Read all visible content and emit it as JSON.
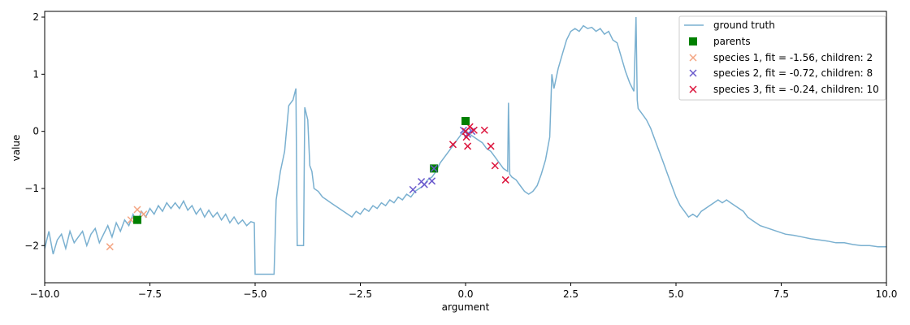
{
  "chart_data": {
    "type": "scatter",
    "title": "",
    "xlabel": "argument",
    "ylabel": "value",
    "xlim": [
      -10,
      10
    ],
    "ylim": [
      -2.65,
      2.1
    ],
    "xticks": [
      -10,
      -7.5,
      -5,
      -2.5,
      0,
      2.5,
      5,
      7.5,
      10
    ],
    "xtick_labels": [
      "−10.0",
      "−7.5",
      "−5.0",
      "−2.5",
      "0.0",
      "2.5",
      "5.0",
      "7.5",
      "10.0"
    ],
    "yticks": [
      -2,
      -1,
      0,
      1,
      2
    ],
    "ytick_labels": [
      "−2",
      "−1",
      "0",
      "1",
      "2"
    ],
    "grid": false,
    "legend_position": "top-right",
    "colors": {
      "ground_truth": "#7ab0d0",
      "parents": "#008000",
      "species1": "#f4a582",
      "species2": "#6a5acd",
      "species3": "#dc143c"
    },
    "ground_truth": {
      "name": "ground truth",
      "points": [
        [
          -10.0,
          -2.05
        ],
        [
          -9.9,
          -1.75
        ],
        [
          -9.8,
          -2.15
        ],
        [
          -9.7,
          -1.9
        ],
        [
          -9.6,
          -1.8
        ],
        [
          -9.5,
          -2.05
        ],
        [
          -9.4,
          -1.75
        ],
        [
          -9.3,
          -1.95
        ],
        [
          -9.2,
          -1.85
        ],
        [
          -9.1,
          -1.75
        ],
        [
          -9.0,
          -2.0
        ],
        [
          -8.9,
          -1.8
        ],
        [
          -8.8,
          -1.7
        ],
        [
          -8.7,
          -1.95
        ],
        [
          -8.6,
          -1.8
        ],
        [
          -8.5,
          -1.65
        ],
        [
          -8.4,
          -1.85
        ],
        [
          -8.3,
          -1.6
        ],
        [
          -8.2,
          -1.75
        ],
        [
          -8.1,
          -1.55
        ],
        [
          -8.0,
          -1.65
        ],
        [
          -7.9,
          -1.45
        ],
        [
          -7.8,
          -1.6
        ],
        [
          -7.7,
          -1.4
        ],
        [
          -7.6,
          -1.5
        ],
        [
          -7.5,
          -1.35
        ],
        [
          -7.4,
          -1.45
        ],
        [
          -7.3,
          -1.3
        ],
        [
          -7.2,
          -1.4
        ],
        [
          -7.1,
          -1.25
        ],
        [
          -7.0,
          -1.35
        ],
        [
          -6.9,
          -1.25
        ],
        [
          -6.8,
          -1.35
        ],
        [
          -6.7,
          -1.22
        ],
        [
          -6.6,
          -1.38
        ],
        [
          -6.5,
          -1.3
        ],
        [
          -6.4,
          -1.45
        ],
        [
          -6.3,
          -1.35
        ],
        [
          -6.2,
          -1.5
        ],
        [
          -6.1,
          -1.38
        ],
        [
          -6.0,
          -1.5
        ],
        [
          -5.9,
          -1.42
        ],
        [
          -5.8,
          -1.55
        ],
        [
          -5.7,
          -1.45
        ],
        [
          -5.6,
          -1.6
        ],
        [
          -5.5,
          -1.5
        ],
        [
          -5.4,
          -1.62
        ],
        [
          -5.3,
          -1.55
        ],
        [
          -5.2,
          -1.65
        ],
        [
          -5.1,
          -1.58
        ],
        [
          -5.02,
          -1.6
        ],
        [
          -5.0,
          -2.5
        ],
        [
          -4.55,
          -2.5
        ],
        [
          -4.5,
          -1.2
        ],
        [
          -4.4,
          -0.7
        ],
        [
          -4.3,
          -0.35
        ],
        [
          -4.2,
          0.45
        ],
        [
          -4.1,
          0.55
        ],
        [
          -4.03,
          0.75
        ],
        [
          -4.0,
          -2.0
        ],
        [
          -3.85,
          -2.0
        ],
        [
          -3.82,
          0.42
        ],
        [
          -3.75,
          0.2
        ],
        [
          -3.7,
          -0.6
        ],
        [
          -3.65,
          -0.7
        ],
        [
          -3.6,
          -1.0
        ],
        [
          -3.5,
          -1.05
        ],
        [
          -3.4,
          -1.15
        ],
        [
          -3.3,
          -1.2
        ],
        [
          -3.2,
          -1.25
        ],
        [
          -3.1,
          -1.3
        ],
        [
          -3.0,
          -1.35
        ],
        [
          -2.9,
          -1.4
        ],
        [
          -2.8,
          -1.45
        ],
        [
          -2.7,
          -1.5
        ],
        [
          -2.6,
          -1.4
        ],
        [
          -2.5,
          -1.45
        ],
        [
          -2.4,
          -1.35
        ],
        [
          -2.3,
          -1.4
        ],
        [
          -2.2,
          -1.3
        ],
        [
          -2.1,
          -1.35
        ],
        [
          -2.0,
          -1.25
        ],
        [
          -1.9,
          -1.3
        ],
        [
          -1.8,
          -1.2
        ],
        [
          -1.7,
          -1.25
        ],
        [
          -1.6,
          -1.15
        ],
        [
          -1.5,
          -1.2
        ],
        [
          -1.4,
          -1.1
        ],
        [
          -1.3,
          -1.15
        ],
        [
          -1.2,
          -1.05
        ],
        [
          -1.1,
          -1.0
        ],
        [
          -1.0,
          -0.95
        ],
        [
          -0.9,
          -0.85
        ],
        [
          -0.8,
          -0.8
        ],
        [
          -0.7,
          -0.7
        ],
        [
          -0.6,
          -0.55
        ],
        [
          -0.5,
          -0.45
        ],
        [
          -0.4,
          -0.35
        ],
        [
          -0.3,
          -0.25
        ],
        [
          -0.2,
          -0.15
        ],
        [
          -0.1,
          -0.05
        ],
        [
          0.0,
          0.02
        ],
        [
          0.1,
          -0.05
        ],
        [
          0.2,
          -0.1
        ],
        [
          0.3,
          -0.15
        ],
        [
          0.4,
          -0.2
        ],
        [
          0.5,
          -0.3
        ],
        [
          0.6,
          -0.35
        ],
        [
          0.7,
          -0.45
        ],
        [
          0.8,
          -0.55
        ],
        [
          0.9,
          -0.65
        ],
        [
          1.0,
          -0.7
        ],
        [
          1.02,
          0.5
        ],
        [
          1.05,
          -0.75
        ],
        [
          1.1,
          -0.8
        ],
        [
          1.2,
          -0.85
        ],
        [
          1.3,
          -0.95
        ],
        [
          1.4,
          -1.05
        ],
        [
          1.5,
          -1.1
        ],
        [
          1.6,
          -1.05
        ],
        [
          1.7,
          -0.95
        ],
        [
          1.8,
          -0.75
        ],
        [
          1.9,
          -0.5
        ],
        [
          2.0,
          -0.1
        ],
        [
          2.05,
          1.0
        ],
        [
          2.1,
          0.75
        ],
        [
          2.2,
          1.1
        ],
        [
          2.3,
          1.35
        ],
        [
          2.4,
          1.6
        ],
        [
          2.5,
          1.75
        ],
        [
          2.6,
          1.8
        ],
        [
          2.7,
          1.75
        ],
        [
          2.8,
          1.85
        ],
        [
          2.9,
          1.8
        ],
        [
          3.0,
          1.82
        ],
        [
          3.1,
          1.75
        ],
        [
          3.2,
          1.8
        ],
        [
          3.3,
          1.7
        ],
        [
          3.4,
          1.75
        ],
        [
          3.5,
          1.6
        ],
        [
          3.6,
          1.55
        ],
        [
          3.7,
          1.3
        ],
        [
          3.8,
          1.05
        ],
        [
          3.9,
          0.85
        ],
        [
          4.0,
          0.7
        ],
        [
          4.05,
          2.0
        ],
        [
          4.08,
          0.55
        ],
        [
          4.1,
          0.4
        ],
        [
          4.2,
          0.3
        ],
        [
          4.3,
          0.2
        ],
        [
          4.4,
          0.05
        ],
        [
          4.5,
          -0.15
        ],
        [
          4.6,
          -0.35
        ],
        [
          4.7,
          -0.55
        ],
        [
          4.8,
          -0.75
        ],
        [
          4.9,
          -0.95
        ],
        [
          5.0,
          -1.15
        ],
        [
          5.1,
          -1.3
        ],
        [
          5.2,
          -1.4
        ],
        [
          5.3,
          -1.5
        ],
        [
          5.4,
          -1.45
        ],
        [
          5.5,
          -1.5
        ],
        [
          5.6,
          -1.4
        ],
        [
          5.7,
          -1.35
        ],
        [
          5.8,
          -1.3
        ],
        [
          5.9,
          -1.25
        ],
        [
          6.0,
          -1.2
        ],
        [
          6.1,
          -1.25
        ],
        [
          6.2,
          -1.2
        ],
        [
          6.3,
          -1.25
        ],
        [
          6.4,
          -1.3
        ],
        [
          6.5,
          -1.35
        ],
        [
          6.6,
          -1.4
        ],
        [
          6.7,
          -1.5
        ],
        [
          6.8,
          -1.55
        ],
        [
          6.9,
          -1.6
        ],
        [
          7.0,
          -1.65
        ],
        [
          7.2,
          -1.7
        ],
        [
          7.4,
          -1.75
        ],
        [
          7.6,
          -1.8
        ],
        [
          7.8,
          -1.82
        ],
        [
          8.0,
          -1.85
        ],
        [
          8.2,
          -1.88
        ],
        [
          8.4,
          -1.9
        ],
        [
          8.6,
          -1.92
        ],
        [
          8.8,
          -1.95
        ],
        [
          9.0,
          -1.95
        ],
        [
          9.2,
          -1.98
        ],
        [
          9.4,
          -2.0
        ],
        [
          9.6,
          -2.0
        ],
        [
          9.8,
          -2.02
        ],
        [
          10.0,
          -2.02
        ]
      ]
    },
    "parents": {
      "name": "parents",
      "points": [
        [
          -7.8,
          -1.55
        ],
        [
          -0.75,
          -0.65
        ],
        [
          0.0,
          0.18
        ]
      ]
    },
    "series": [
      {
        "name": "species 1, fit = -1.56, children: 2",
        "points": [
          [
            -8.45,
            -2.02
          ],
          [
            -7.95,
            -1.55
          ],
          [
            -7.8,
            -1.37
          ],
          [
            -7.65,
            -1.45
          ]
        ]
      },
      {
        "name": "species 2, fit = -0.72, children: 8",
        "points": [
          [
            -1.25,
            -1.02
          ],
          [
            -1.05,
            -0.88
          ],
          [
            -0.98,
            -0.93
          ],
          [
            -0.8,
            -0.87
          ],
          [
            -0.75,
            -0.65
          ],
          [
            -0.05,
            0.02
          ],
          [
            0.05,
            -0.05
          ],
          [
            0.15,
            0.0
          ]
        ]
      },
      {
        "name": "species 3, fit = -0.24, children: 10",
        "points": [
          [
            -0.3,
            -0.23
          ],
          [
            0.0,
            0.0
          ],
          [
            0.02,
            -0.1
          ],
          [
            0.05,
            -0.26
          ],
          [
            0.1,
            0.08
          ],
          [
            0.2,
            0.02
          ],
          [
            0.45,
            0.02
          ],
          [
            0.6,
            -0.26
          ],
          [
            0.7,
            -0.6
          ],
          [
            0.95,
            -0.85
          ]
        ]
      }
    ]
  }
}
